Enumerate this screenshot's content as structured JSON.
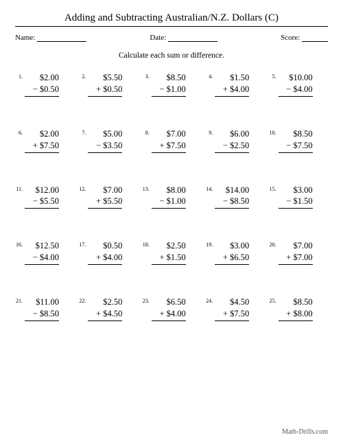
{
  "title": "Adding and Subtracting Australian/N.Z. Dollars (C)",
  "meta": {
    "name_label": "Name:",
    "date_label": "Date:",
    "score_label": "Score:"
  },
  "instruction": "Calculate each sum or difference.",
  "footer": "Math-Drills.com",
  "blank_widths": {
    "name": 72,
    "date": 72,
    "score": 38
  },
  "problems": [
    {
      "n": "1.",
      "a": "$2.00",
      "op": "−",
      "b": "$0.50"
    },
    {
      "n": "2.",
      "a": "$5.50",
      "op": "+",
      "b": "$0.50"
    },
    {
      "n": "3.",
      "a": "$8.50",
      "op": "−",
      "b": "$1.00"
    },
    {
      "n": "4.",
      "a": "$1.50",
      "op": "+",
      "b": "$4.00"
    },
    {
      "n": "5.",
      "a": "$10.00",
      "op": "−",
      "b": "$4.00"
    },
    {
      "n": "6.",
      "a": "$2.00",
      "op": "+",
      "b": "$7.50"
    },
    {
      "n": "7.",
      "a": "$5.00",
      "op": "−",
      "b": "$3.50"
    },
    {
      "n": "8.",
      "a": "$7.00",
      "op": "+",
      "b": "$7.50"
    },
    {
      "n": "9.",
      "a": "$6.00",
      "op": "−",
      "b": "$2.50"
    },
    {
      "n": "10.",
      "a": "$8.50",
      "op": "−",
      "b": "$7.50"
    },
    {
      "n": "11.",
      "a": "$12.00",
      "op": "−",
      "b": "$5.50"
    },
    {
      "n": "12.",
      "a": "$7.00",
      "op": "+",
      "b": "$5.50"
    },
    {
      "n": "13.",
      "a": "$8.00",
      "op": "−",
      "b": "$1.00"
    },
    {
      "n": "14.",
      "a": "$14.00",
      "op": "−",
      "b": "$8.50"
    },
    {
      "n": "15.",
      "a": "$3.00",
      "op": "−",
      "b": "$1.50"
    },
    {
      "n": "16.",
      "a": "$12.50",
      "op": "−",
      "b": "$4.00"
    },
    {
      "n": "17.",
      "a": "$0.50",
      "op": "+",
      "b": "$4.00"
    },
    {
      "n": "18.",
      "a": "$2.50",
      "op": "+",
      "b": "$1.50"
    },
    {
      "n": "19.",
      "a": "$3.00",
      "op": "+",
      "b": "$6.50"
    },
    {
      "n": "20.",
      "a": "$7.00",
      "op": "+",
      "b": "$7.00"
    },
    {
      "n": "21.",
      "a": "$11.00",
      "op": "−",
      "b": "$8.50"
    },
    {
      "n": "22.",
      "a": "$2.50",
      "op": "+",
      "b": "$4.50"
    },
    {
      "n": "23.",
      "a": "$6.50",
      "op": "+",
      "b": "$4.00"
    },
    {
      "n": "24.",
      "a": "$4.50",
      "op": "+",
      "b": "$7.50"
    },
    {
      "n": "25.",
      "a": "$8.50",
      "op": "+",
      "b": "$8.00"
    }
  ]
}
